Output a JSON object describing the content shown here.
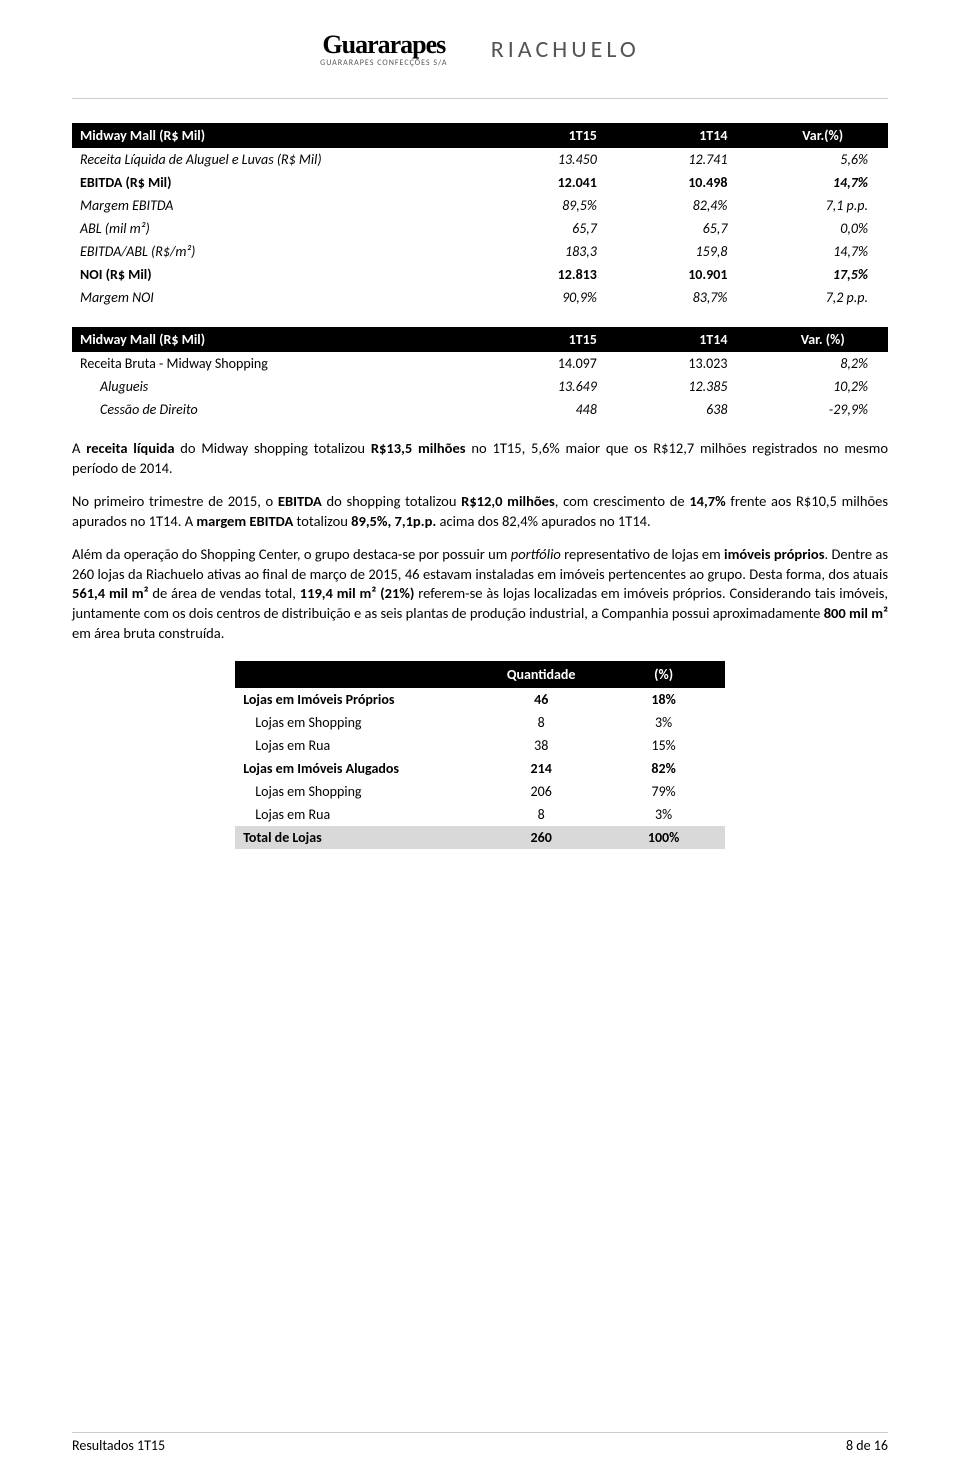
{
  "brand": {
    "guararapes": "Guararapes",
    "guararapes_sub": "GUARARAPES CONFECÇÕES S/A",
    "riachuelo": "RIACHUELO"
  },
  "table1": {
    "headers": [
      "Midway Mall (R$ Mil)",
      "1T15",
      "1T14",
      "Var.(%)"
    ],
    "rows": [
      {
        "label": "Receita Líquida de Aluguel e Luvas (R$ Mil)",
        "v1": "13.450",
        "v2": "12.741",
        "var": "5,6%",
        "italic": true
      },
      {
        "label": "EBITDA (R$ Mil)",
        "v1": "12.041",
        "v2": "10.498",
        "var": "14,7%",
        "bold": true
      },
      {
        "label": "Margem EBITDA",
        "v1": "89,5%",
        "v2": "82,4%",
        "var": "7,1 p.p.",
        "italic": true
      },
      {
        "label": "ABL (mil m²)",
        "v1": "65,7",
        "v2": "65,7",
        "var": "0,0%",
        "italic": true
      },
      {
        "label": "EBITDA/ABL (R$/m²)",
        "v1": "183,3",
        "v2": "159,8",
        "var": "14,7%",
        "italic": true
      },
      {
        "label": "NOI (R$ Mil)",
        "v1": "12.813",
        "v2": "10.901",
        "var": "17,5%",
        "bold": true
      },
      {
        "label": "Margem NOI",
        "v1": "90,9%",
        "v2": "83,7%",
        "var": "7,2 p.p.",
        "italic": true
      }
    ]
  },
  "table2": {
    "headers": [
      "Midway Mall (R$ Mil)",
      "1T15",
      "1T14",
      "Var. (%)"
    ],
    "rows": [
      {
        "label": "Receita Bruta - Midway Shopping",
        "v1": "14.097",
        "v2": "13.023",
        "var": "8,2%"
      },
      {
        "label": "Alugueis",
        "v1": "13.649",
        "v2": "12.385",
        "var": "10,2%",
        "italic": true,
        "indent": true
      },
      {
        "label": "Cessão de Direito",
        "v1": "448",
        "v2": "638",
        "var": "-29,9%",
        "italic": true,
        "indent": true
      }
    ]
  },
  "paragraphs": {
    "p1_a": "A ",
    "p1_b": "receita líquida",
    "p1_c": " do Midway shopping totalizou ",
    "p1_d": "R$13,5 milhões",
    "p1_e": " no 1T15, 5,6% maior que os R$12,7 milhões registrados no mesmo período de 2014.",
    "p2_a": "No primeiro trimestre de 2015, o ",
    "p2_b": "EBITDA",
    "p2_c": " do shopping totalizou ",
    "p2_d": "R$12,0 milhões",
    "p2_e": ", com crescimento de ",
    "p2_f": "14,7%",
    "p2_g": " frente aos R$10,5 milhões apurados no 1T14. A ",
    "p2_h": "margem EBITDA",
    "p2_i": " totalizou ",
    "p2_j": "89,5%, 7,1p.p.",
    "p2_k": " acima dos 82,4% apurados no 1T14.",
    "p3_a": "Além da operação do Shopping Center, o grupo destaca-se por possuir um ",
    "p3_b": "portfólio",
    "p3_c": " representativo de lojas em ",
    "p3_d": "imóveis próprios",
    "p3_e": ". Dentre as 260 lojas da Riachuelo ativas ao final de março de 2015, 46 estavam instaladas em imóveis pertencentes ao grupo. Desta forma, dos atuais ",
    "p3_f": "561,4 mil m²",
    "p3_g": " de área de vendas total, ",
    "p3_h": "119,4 mil m² (21%)",
    "p3_i": " referem-se às lojas localizadas em imóveis próprios. Considerando tais imóveis, juntamente com os dois centros de distribuição e as seis plantas de produção industrial, a Companhia possui aproximadamente ",
    "p3_j": "800 mil m²",
    "p3_k": " em área bruta construída."
  },
  "table3": {
    "headers": [
      "",
      "Quantidade",
      "(%)"
    ],
    "rows": [
      {
        "label": "Lojas em Imóveis Próprios",
        "q": "46",
        "p": "18%",
        "bold": true
      },
      {
        "label": "Lojas em Shopping",
        "q": "8",
        "p": "3%",
        "indent": true
      },
      {
        "label": "Lojas em Rua",
        "q": "38",
        "p": "15%",
        "indent": true
      },
      {
        "label": "Lojas em Imóveis Alugados",
        "q": "214",
        "p": "82%",
        "bold": true
      },
      {
        "label": "Lojas em Shopping",
        "q": "206",
        "p": "79%",
        "indent": true
      },
      {
        "label": "Lojas em Rua",
        "q": "8",
        "p": "3%",
        "indent": true
      }
    ],
    "footer": {
      "label": "Total de Lojas",
      "q": "260",
      "p": "100%"
    }
  },
  "footer": {
    "left": "Resultados 1T15",
    "right": "8 de 16"
  }
}
